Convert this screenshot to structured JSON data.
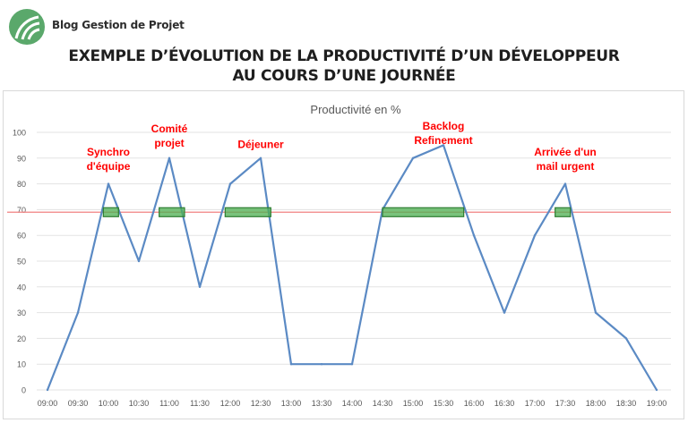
{
  "header": {
    "brand": "Blog Gestion de Projet",
    "headline_line1": "EXEMPLE D’ÉVOLUTION DE LA PRODUCTIVITÉ D’UN DÉVELOPPEUR",
    "headline_line2": "AU COURS D’UNE JOURNÉE",
    "logo_icon": "leaf-logo-icon",
    "logo_color": "#5aa86b"
  },
  "chart_data": {
    "type": "line",
    "title": "Productivité en %",
    "x": [
      "09:00",
      "09:30",
      "10:00",
      "10:30",
      "11:00",
      "11:30",
      "12:00",
      "12:30",
      "13:00",
      "13:30",
      "14:00",
      "14:30",
      "15:00",
      "15:30",
      "16:00",
      "16:30",
      "17:00",
      "17:30",
      "18:00",
      "18:30",
      "19:00"
    ],
    "series": [
      {
        "values": [
          0,
          30,
          80,
          50,
          90,
          40,
          80,
          90,
          10,
          10,
          10,
          70,
          90,
          95,
          60,
          30,
          60,
          80,
          30,
          20,
          0
        ]
      }
    ],
    "ylim": [
      0,
      100
    ],
    "yticks": [
      0,
      10,
      20,
      30,
      40,
      50,
      60,
      70,
      80,
      90,
      100
    ],
    "grid": true,
    "line_color": "#5b8ac4",
    "threshold": {
      "value": 69,
      "color": "#f08080"
    },
    "highlights": [
      {
        "from": "09:55",
        "to": "10:10",
        "value": 69
      },
      {
        "from": "10:50",
        "to": "11:15",
        "value": 69
      },
      {
        "from": "11:55",
        "to": "12:40",
        "value": 69
      },
      {
        "from": "14:30",
        "to": "15:50",
        "value": 69
      }
    ],
    "highlight_last": {
      "from": "17:20",
      "to": "17:35",
      "value": 69
    },
    "highlight_color": "#4caf50",
    "annotations": [
      {
        "lines": [
          "Synchro",
          "d'équipe"
        ],
        "x": "10:00",
        "y": 91,
        "color": "#ff0000"
      },
      {
        "lines": [
          "Comité",
          "projet"
        ],
        "x": "11:00",
        "y": 100,
        "color": "#ff0000"
      },
      {
        "lines": [
          "Déjeuner"
        ],
        "x": "12:30",
        "y": 94,
        "color": "#ff0000"
      },
      {
        "lines": [
          "Backlog",
          "Refinement"
        ],
        "x": "15:30",
        "y": 101,
        "color": "#ff0000"
      },
      {
        "lines": [
          "Arrivée d'un",
          "mail urgent"
        ],
        "x": "17:30",
        "y": 91,
        "color": "#ff0000"
      }
    ]
  }
}
